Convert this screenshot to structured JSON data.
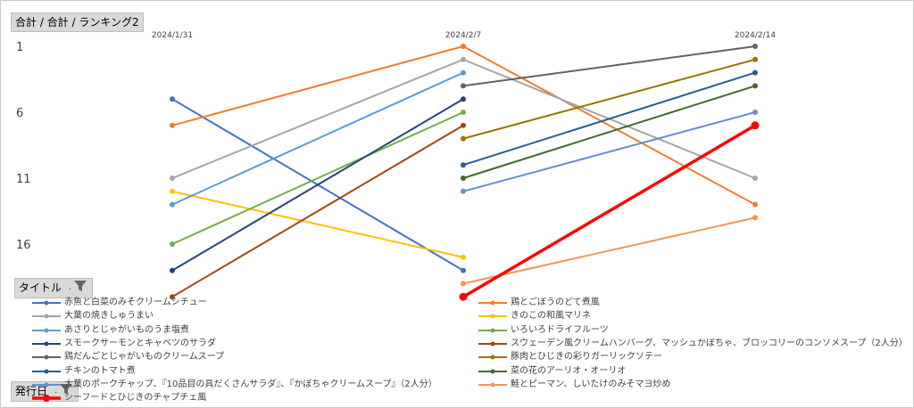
{
  "buttons": {
    "values_field": "合計 / 合計 / ランキング2",
    "series_field": "タイトル",
    "axis_field": "発行日"
  },
  "chart_data": {
    "type": "line",
    "x": [
      "2024/1/31",
      "2024/2/7",
      "2024/2/14"
    ],
    "y_reversed": true,
    "ylim": [
      1,
      19
    ],
    "y_ticks": [
      "1",
      "6",
      "11",
      "16"
    ],
    "grid": false,
    "legend_position": "bottom",
    "series": [
      {
        "name": "赤魚と白菜のみそクリームシチュー",
        "color": "#4472c4",
        "values": [
          5,
          18,
          null
        ]
      },
      {
        "name": "鶏とごぼうのどて煮風",
        "color": "#ed7d31",
        "values": [
          7,
          1,
          13
        ]
      },
      {
        "name": "大葉の焼きしゅうまい",
        "color": "#a5a5a5",
        "values": [
          11,
          2,
          11
        ]
      },
      {
        "name": "きのこの和風マリネ",
        "color": "#ffc000",
        "values": [
          12,
          17,
          null
        ]
      },
      {
        "name": "あさりとじゃがいものうま塩煮",
        "color": "#5b9bd5",
        "values": [
          13,
          3,
          null
        ]
      },
      {
        "name": "いろいろドライフルーツ",
        "color": "#70ad47",
        "values": [
          16,
          6,
          null
        ]
      },
      {
        "name": "スモークサーモンとキャベツのサラダ",
        "color": "#264478",
        "values": [
          18,
          5,
          null
        ]
      },
      {
        "name": "スウェーデン風クリームハンバーグ、マッシュかぼちゃ、ブロッコリーのコンソメスープ（2人分）",
        "color": "#9e480e",
        "values": [
          20,
          7,
          null
        ]
      },
      {
        "name": "鶏だんごとじゃがいものクリームスープ",
        "color": "#636363",
        "values": [
          null,
          4,
          1
        ]
      },
      {
        "name": "豚肉とひじきの彩りガーリックソテー",
        "color": "#997300",
        "values": [
          null,
          8,
          2
        ]
      },
      {
        "name": "チキンのトマト煮",
        "color": "#255e91",
        "values": [
          null,
          10,
          3
        ]
      },
      {
        "name": "菜の花のアーリオ・オーリオ",
        "color": "#43682b",
        "values": [
          null,
          11,
          4
        ]
      },
      {
        "name": "大葉のポークチャップ、『10品目の具だくさんサラダ』、『かぼちゃクリームスープ』（2人分）",
        "color": "#698ed0",
        "values": [
          null,
          12,
          6
        ]
      },
      {
        "name": "鮭とピーマン、しいたけのみそマヨ炒め",
        "color": "#f1975a",
        "values": [
          null,
          19,
          14
        ]
      },
      {
        "name": "シーフードとひじきのチャプチェ風",
        "color": "#ff0000",
        "values": [
          null,
          20,
          7
        ],
        "highlight": true
      }
    ]
  }
}
